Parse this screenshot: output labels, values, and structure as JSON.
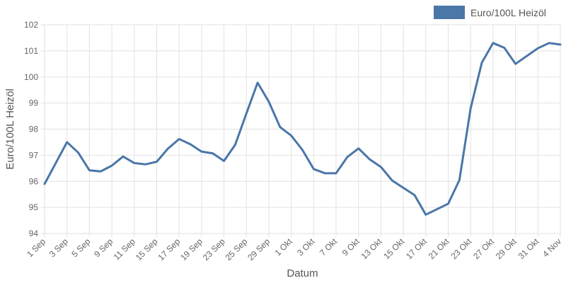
{
  "chart_data": {
    "type": "line",
    "title": "",
    "xlabel": "Datum",
    "ylabel": "Euro/100L Heizöl",
    "ylim": [
      94,
      102
    ],
    "y_ticks": [
      "94",
      "95",
      "96",
      "97",
      "98",
      "99",
      "100",
      "101",
      "102"
    ],
    "x": [
      "1 Sep",
      "2 Sep",
      "3 Sep",
      "4 Sep",
      "5 Sep",
      "8 Sep",
      "9 Sep",
      "10 Sep",
      "11 Sep",
      "12 Sep",
      "15 Sep",
      "16 Sep",
      "17 Sep",
      "18 Sep",
      "19 Sep",
      "22 Sep",
      "23 Sep",
      "24 Sep",
      "25 Sep",
      "26 Sep",
      "29 Sep",
      "30 Sep",
      "1 Okt",
      "2 Okt",
      "3 Okt",
      "6 Okt",
      "7 Okt",
      "8 Okt",
      "9 Okt",
      "10 Okt",
      "13 Okt",
      "14 Okt",
      "15 Okt",
      "16 Okt",
      "17 Okt",
      "20 Okt",
      "21 Okt",
      "22 Okt",
      "23 Okt",
      "24 Okt",
      "27 Okt",
      "28 Okt",
      "29 Okt",
      "30 Okt",
      "31 Okt",
      "3 Nov",
      "4 Nov"
    ],
    "x_tick_labels": [
      "1 Sep",
      "3 Sep",
      "5 Sep",
      "9 Sep",
      "11 Sep",
      "15 Sep",
      "17 Sep",
      "19 Sep",
      "23 Sep",
      "25 Sep",
      "29 Sep",
      "1 Okt",
      "3 Okt",
      "7 Okt",
      "9 Okt",
      "13 Okt",
      "15 Okt",
      "17 Okt",
      "21 Okt",
      "23 Okt",
      "27 Okt",
      "29 Okt",
      "31 Okt",
      "4 Nov"
    ],
    "series": [
      {
        "name": "Euro/100L Heizöl",
        "color": "#4a76a8",
        "values": [
          95.9,
          96.7,
          97.5,
          97.1,
          96.42,
          96.38,
          96.6,
          96.95,
          96.7,
          96.65,
          96.75,
          97.25,
          97.62,
          97.42,
          97.14,
          97.07,
          96.78,
          97.4,
          98.6,
          99.78,
          99.05,
          98.08,
          97.75,
          97.2,
          96.47,
          96.31,
          96.31,
          96.93,
          97.26,
          96.84,
          96.55,
          96.03,
          95.75,
          95.47,
          94.72,
          94.93,
          95.14,
          96.05,
          98.8,
          100.55,
          101.3,
          101.12,
          100.5,
          100.8,
          101.1,
          101.3,
          101.24
        ]
      }
    ],
    "grid": true,
    "legend": {
      "position": "top-right",
      "entries": [
        "Euro/100L Heizöl"
      ]
    }
  }
}
